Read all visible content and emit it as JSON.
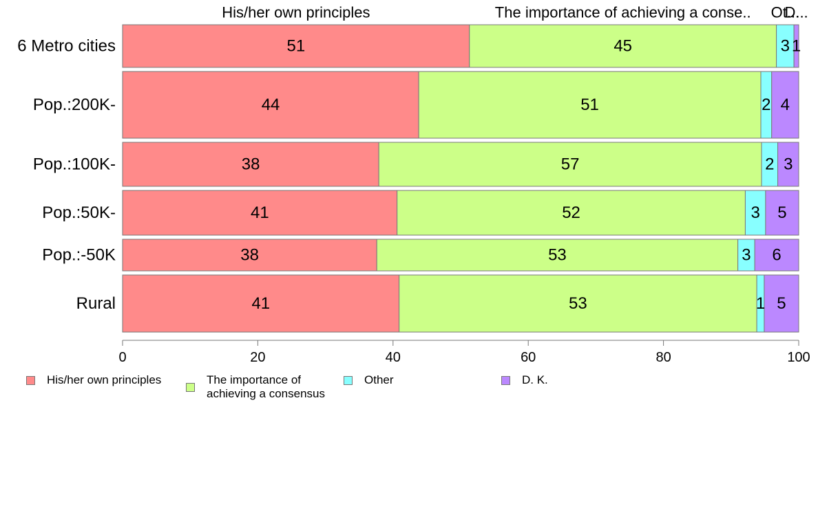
{
  "chart_data": {
    "type": "bar",
    "orientation": "horizontal",
    "stacked": true,
    "categories": [
      "6 Metro cities",
      "Pop.:200K-",
      "Pop.:100K-",
      "Pop.:50K-",
      "Pop.:-50K",
      "Rural"
    ],
    "series": [
      {
        "name": "His/her own principles",
        "color": "#ff8a8a",
        "values": [
          51.3,
          43.8,
          37.9,
          40.6,
          37.6,
          40.9
        ]
      },
      {
        "name": "The importance of achieving a consensus",
        "color": "#ccff88",
        "values": [
          45.4,
          50.6,
          56.6,
          51.5,
          53.4,
          52.9
        ]
      },
      {
        "name": "Other",
        "color": "#88ffff",
        "values": [
          2.6,
          1.6,
          2.4,
          3.0,
          2.5,
          1.1
        ]
      },
      {
        "name": "D. K.",
        "color": "#bb88ff",
        "values": [
          0.7,
          4.0,
          3.1,
          4.9,
          6.5,
          5.1
        ]
      }
    ],
    "data_labels": [
      [
        "51",
        "45",
        "3",
        "1"
      ],
      [
        "44",
        "51",
        "2",
        "4"
      ],
      [
        "38",
        "57",
        "2",
        "3"
      ],
      [
        "41",
        "52",
        "3",
        "5"
      ],
      [
        "38",
        "53",
        "3",
        "6"
      ],
      [
        "41",
        "53",
        "1",
        "5"
      ]
    ],
    "top_labels": [
      "His/her own principles",
      "The importance of achieving a conse..",
      "Ot...",
      "D..."
    ],
    "legend_labels": [
      "His/her own principles",
      "The importance of\nachieving a consensus",
      "Other",
      "D. K."
    ],
    "xlim": [
      0,
      100
    ],
    "xticks": [
      "0",
      "20",
      "40",
      "60",
      "80",
      "100"
    ],
    "legend_position": "bottom",
    "grid": false
  }
}
